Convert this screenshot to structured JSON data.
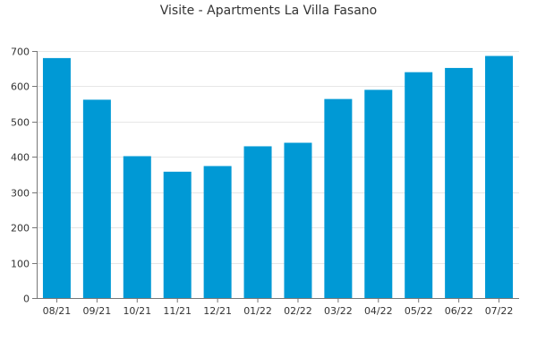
{
  "chart_data": {
    "type": "bar",
    "title": "Visite - Apartments La Villa Fasano",
    "xlabel": "",
    "ylabel": "",
    "categories": [
      "08/21",
      "09/21",
      "10/21",
      "11/21",
      "12/21",
      "01/22",
      "02/22",
      "03/22",
      "04/22",
      "05/22",
      "06/22",
      "07/22"
    ],
    "values": [
      680,
      562,
      402,
      358,
      374,
      430,
      440,
      564,
      590,
      640,
      652,
      686
    ],
    "ylim": [
      0,
      700
    ],
    "yticks": [
      0,
      100,
      200,
      300,
      400,
      500,
      600,
      700
    ],
    "grid": true,
    "legend": "none",
    "colors": {
      "bar": "#0099d5",
      "grid": "#e6e6e6",
      "axis": "#777777",
      "text": "#333333"
    }
  }
}
